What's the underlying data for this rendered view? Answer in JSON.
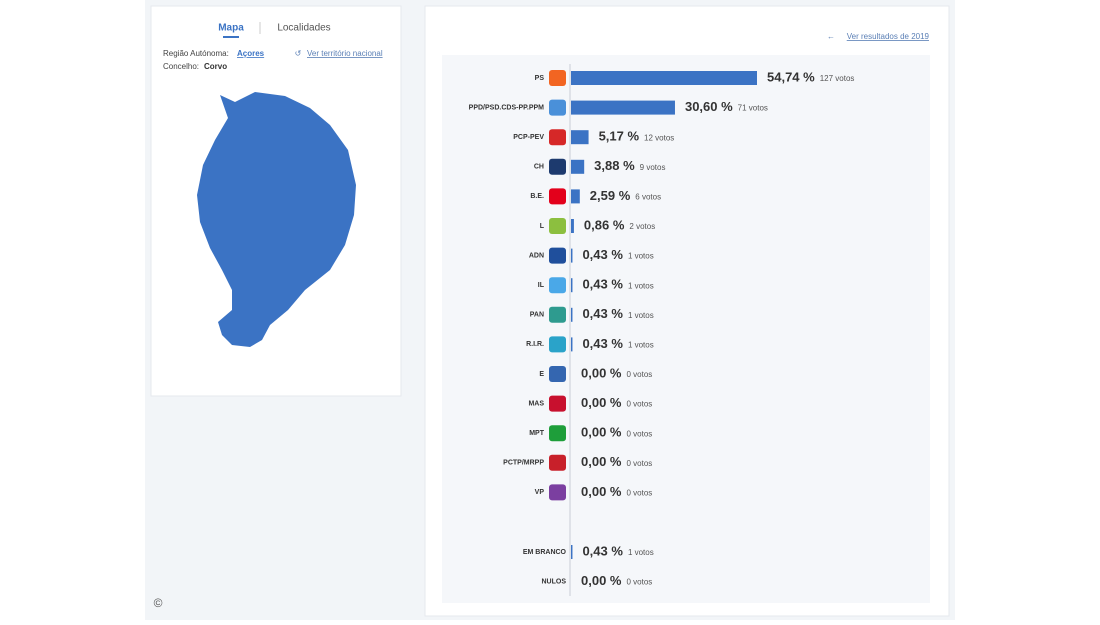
{
  "tabs": [
    "Mapa",
    "Localidades"
  ],
  "region": {
    "label": "Região Autónoma:",
    "value": "Açores",
    "link": "Ver território nacional"
  },
  "municipality": {
    "label": "Concelho:",
    "value": "Corvo"
  },
  "copyright": "©",
  "results": {
    "link": "Ver resultados de 2019",
    "bar_color": "#3b73c4",
    "parties": [
      {
        "name": "PS",
        "pct": 54.74,
        "pct_label": "54,74 %",
        "votes_label": "127 votos",
        "icon_color": "#f26522"
      },
      {
        "name": "PPD/PSD.CDS-PP.PPM",
        "pct": 30.6,
        "pct_label": "30,60 %",
        "votes_label": "71 votos",
        "icon_color": "#4a90d9"
      },
      {
        "name": "PCP-PEV",
        "pct": 5.17,
        "pct_label": "5,17 %",
        "votes_label": "12 votos",
        "icon_color": "#d62828"
      },
      {
        "name": "CH",
        "pct": 3.88,
        "pct_label": "3,88 %",
        "votes_label": "9 votos",
        "icon_color": "#1d3a6e"
      },
      {
        "name": "B.E.",
        "pct": 2.59,
        "pct_label": "2,59 %",
        "votes_label": "6 votos",
        "icon_color": "#e3001b"
      },
      {
        "name": "L",
        "pct": 0.86,
        "pct_label": "0,86 %",
        "votes_label": "2 votos",
        "icon_color": "#8cbf3f"
      },
      {
        "name": "ADN",
        "pct": 0.43,
        "pct_label": "0,43 %",
        "votes_label": "1 votos",
        "icon_color": "#1f4f9c"
      },
      {
        "name": "IL",
        "pct": 0.43,
        "pct_label": "0,43 %",
        "votes_label": "1 votos",
        "icon_color": "#4aa8e8"
      },
      {
        "name": "PAN",
        "pct": 0.43,
        "pct_label": "0,43 %",
        "votes_label": "1 votos",
        "icon_color": "#2e9b8f"
      },
      {
        "name": "R.I.R.",
        "pct": 0.43,
        "pct_label": "0,43 %",
        "votes_label": "1 votos",
        "icon_color": "#2aa3c9"
      },
      {
        "name": "E",
        "pct": 0.0,
        "pct_label": "0,00 %",
        "votes_label": "0 votos",
        "icon_color": "#3466b0"
      },
      {
        "name": "MAS",
        "pct": 0.0,
        "pct_label": "0,00 %",
        "votes_label": "0 votos",
        "icon_color": "#c8102e"
      },
      {
        "name": "MPT",
        "pct": 0.0,
        "pct_label": "0,00 %",
        "votes_label": "0 votos",
        "icon_color": "#1e9e3a"
      },
      {
        "name": "PCTP/MRPP",
        "pct": 0.0,
        "pct_label": "0,00 %",
        "votes_label": "0 votos",
        "icon_color": "#c8202a"
      },
      {
        "name": "VP",
        "pct": 0.0,
        "pct_label": "0,00 %",
        "votes_label": "0 votos",
        "icon_color": "#7b3fa0"
      }
    ],
    "others": [
      {
        "name": "EM BRANCO",
        "pct": 0.43,
        "pct_label": "0,43 %",
        "votes_label": "1 votos"
      },
      {
        "name": "NULOS",
        "pct": 0.0,
        "pct_label": "0,00 %",
        "votes_label": "0 votos"
      }
    ]
  }
}
